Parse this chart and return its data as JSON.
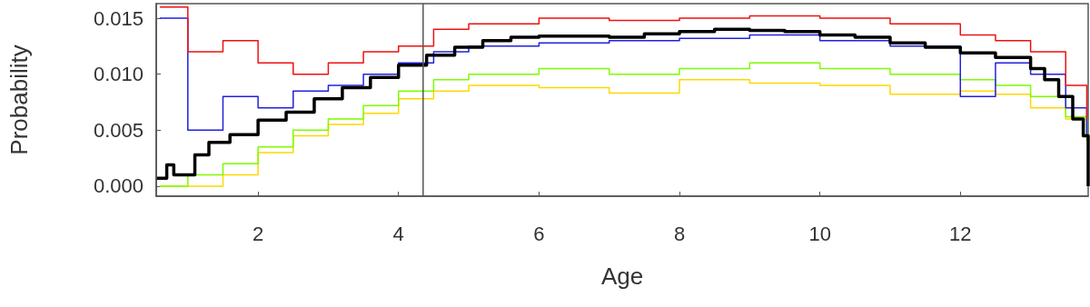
{
  "chart_data": {
    "type": "step",
    "xlabel": "Age",
    "ylabel": "Probability",
    "xlim": [
      0.55,
      13.82
    ],
    "xticks": [
      2,
      4,
      6,
      8,
      10,
      12
    ],
    "ylim": [
      -0.0009,
      0.0163
    ],
    "yticks": [
      {
        "value": 0,
        "label": "0.000"
      },
      {
        "value": 0.005,
        "label": "0.005"
      },
      {
        "value": 0.01,
        "label": "0.010"
      },
      {
        "value": 0.015,
        "label": "0.015"
      }
    ],
    "grid": false,
    "marker": "none",
    "line_style": "solid",
    "ref_lines": [
      {
        "axis": "x",
        "value": 4.35,
        "color": "#555555",
        "line_style": "solid"
      }
    ],
    "series": [
      {
        "color": "#ffd700",
        "x": [
          0.6,
          1,
          1.5,
          2,
          2.5,
          3,
          3.5,
          4,
          4.5,
          5,
          6,
          7,
          8,
          9,
          10,
          11,
          12,
          12.5,
          13,
          13.5,
          13.8
        ],
        "values": [
          0.0,
          0.0,
          0.001,
          0.003,
          0.0045,
          0.0055,
          0.0065,
          0.0078,
          0.0085,
          0.009,
          0.0088,
          0.0083,
          0.0095,
          0.0092,
          0.009,
          0.0082,
          0.0085,
          0.0082,
          0.007,
          0.006,
          0.004
        ]
      },
      {
        "color": "#7cfc00",
        "x": [
          0.6,
          1,
          1.5,
          2,
          2.5,
          3,
          3.5,
          4,
          4.5,
          5,
          6,
          7,
          8,
          9,
          10,
          11,
          12,
          12.5,
          13,
          13.5,
          13.8
        ],
        "values": [
          0.0,
          0.001,
          0.002,
          0.0035,
          0.005,
          0.006,
          0.0072,
          0.0085,
          0.0095,
          0.01,
          0.0105,
          0.01,
          0.0105,
          0.011,
          0.0105,
          0.01,
          0.0095,
          0.009,
          0.008,
          0.0062,
          0.004
        ]
      },
      {
        "color": "#2020e0",
        "x": [
          0.6,
          1,
          1.5,
          2,
          2.5,
          3,
          3.5,
          4,
          4.5,
          5,
          6,
          7,
          8,
          9,
          10,
          11,
          12,
          12.5,
          13,
          13.5,
          13.8
        ],
        "values": [
          0.015,
          0.005,
          0.008,
          0.007,
          0.0085,
          0.009,
          0.01,
          0.011,
          0.012,
          0.0125,
          0.0128,
          0.013,
          0.0132,
          0.0135,
          0.013,
          0.0125,
          0.008,
          0.011,
          0.01,
          0.007,
          0.0045
        ]
      },
      {
        "color": "#ee1111",
        "x": [
          0.6,
          1,
          1.5,
          2,
          2.5,
          3,
          3.5,
          4,
          4.5,
          5,
          6,
          7,
          8,
          9,
          10,
          11,
          12,
          12.5,
          13,
          13.5,
          13.8
        ],
        "values": [
          0.016,
          0.012,
          0.013,
          0.011,
          0.01,
          0.011,
          0.012,
          0.0125,
          0.014,
          0.0145,
          0.015,
          0.0148,
          0.015,
          0.0152,
          0.015,
          0.0145,
          0.0135,
          0.013,
          0.012,
          0.009,
          0.006
        ]
      },
      {
        "color": "#000000",
        "x": [
          0.56,
          0.7,
          0.8,
          1.1,
          1.3,
          1.6,
          2,
          2.4,
          2.8,
          3.2,
          3.6,
          4,
          4.4,
          4.8,
          5.2,
          5.6,
          6,
          6.5,
          7,
          7.5,
          8,
          8.5,
          9,
          9.5,
          10,
          10.5,
          11,
          11.5,
          12,
          12.5,
          13,
          13.2,
          13.4,
          13.6,
          13.75,
          13.82
        ],
        "values": [
          0.0007,
          0.0019,
          0.001,
          0.0028,
          0.0039,
          0.0046,
          0.0059,
          0.0066,
          0.0078,
          0.0088,
          0.0097,
          0.0108,
          0.0117,
          0.0124,
          0.013,
          0.0133,
          0.0134,
          0.0134,
          0.0133,
          0.0136,
          0.0138,
          0.014,
          0.0139,
          0.0138,
          0.0135,
          0.0133,
          0.0128,
          0.0124,
          0.0119,
          0.0115,
          0.0105,
          0.0095,
          0.008,
          0.006,
          0.0045,
          0
        ]
      }
    ]
  }
}
